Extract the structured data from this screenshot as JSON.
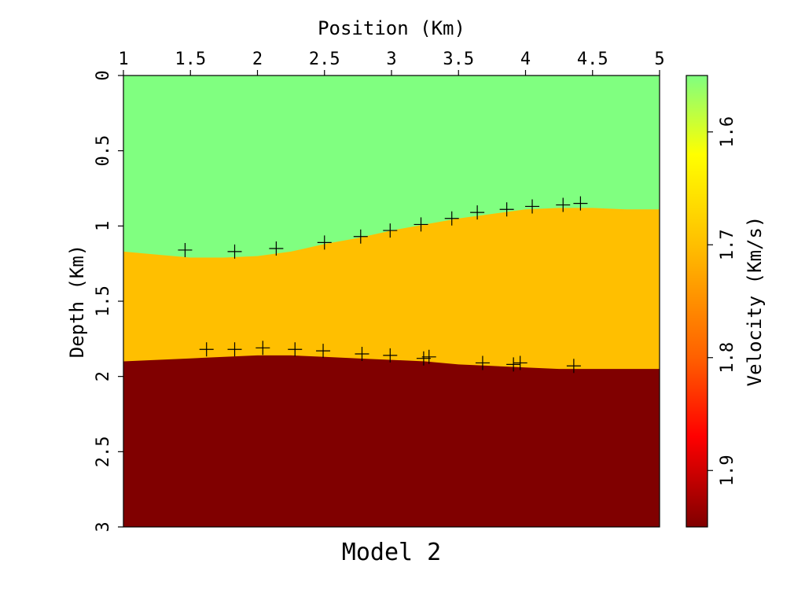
{
  "chart_data": {
    "type": "heatmap",
    "title": "",
    "caption": "Model 2",
    "xlabel": "Position (Km)",
    "ylabel": "Depth (Km)",
    "colorbar_label": "Velocity (Km/s)",
    "xlim": [
      1,
      5
    ],
    "ylim": [
      0,
      3
    ],
    "x_ticks": [
      1,
      1.5,
      2,
      2.5,
      3,
      3.5,
      4,
      4.5,
      5
    ],
    "x_tick_labels": [
      "1",
      "1.5",
      "2",
      "2.5",
      "3",
      "3.5",
      "4",
      "4.5",
      "5"
    ],
    "y_ticks": [
      0,
      0.5,
      1,
      1.5,
      2,
      2.5,
      3
    ],
    "y_tick_labels": [
      "0",
      "0.5",
      "1",
      "1.5",
      "2",
      "2.5",
      "3"
    ],
    "colorbar_range": [
      1.55,
      1.95
    ],
    "colorbar_ticks": [
      1.6,
      1.7,
      1.8,
      1.9
    ],
    "colorbar_tick_labels": [
      "1.6",
      "1.7",
      "1.8",
      "1.9"
    ],
    "colorbar_stops": [
      {
        "value": 1.55,
        "color": "#80ff80"
      },
      {
        "value": 1.62,
        "color": "#ffff00"
      },
      {
        "value": 1.7,
        "color": "#ffbf00"
      },
      {
        "value": 1.8,
        "color": "#ff6000"
      },
      {
        "value": 1.87,
        "color": "#ff0000"
      },
      {
        "value": 1.95,
        "color": "#800000"
      }
    ],
    "layers": [
      {
        "velocity": 1.58,
        "color": "#80ff80"
      },
      {
        "velocity": 1.7,
        "color": "#ffbf00"
      },
      {
        "velocity": 1.95,
        "color": "#800000"
      }
    ],
    "interfaces": [
      {
        "x": [
          1.0,
          1.25,
          1.5,
          1.75,
          2.0,
          2.25,
          2.5,
          2.75,
          3.0,
          3.25,
          3.5,
          3.75,
          4.0,
          4.25,
          4.5,
          4.75,
          5.0
        ],
        "depth": [
          1.17,
          1.19,
          1.21,
          1.21,
          1.2,
          1.17,
          1.12,
          1.08,
          1.03,
          0.99,
          0.95,
          0.92,
          0.89,
          0.88,
          0.88,
          0.89,
          0.89
        ]
      },
      {
        "x": [
          1.0,
          1.25,
          1.5,
          1.75,
          2.0,
          2.25,
          2.5,
          2.75,
          3.0,
          3.25,
          3.5,
          3.75,
          4.0,
          4.25,
          4.5,
          4.75,
          5.0
        ],
        "depth": [
          1.9,
          1.89,
          1.88,
          1.87,
          1.86,
          1.86,
          1.87,
          1.88,
          1.89,
          1.9,
          1.92,
          1.93,
          1.94,
          1.95,
          1.95,
          1.95,
          1.95
        ]
      }
    ],
    "picks": [
      {
        "x": 1.46,
        "depth": 1.16
      },
      {
        "x": 1.83,
        "depth": 1.17
      },
      {
        "x": 2.14,
        "depth": 1.15
      },
      {
        "x": 2.5,
        "depth": 1.11
      },
      {
        "x": 2.77,
        "depth": 1.07
      },
      {
        "x": 2.99,
        "depth": 1.03
      },
      {
        "x": 3.22,
        "depth": 0.99
      },
      {
        "x": 3.45,
        "depth": 0.95
      },
      {
        "x": 3.64,
        "depth": 0.91
      },
      {
        "x": 3.86,
        "depth": 0.89
      },
      {
        "x": 4.05,
        "depth": 0.87
      },
      {
        "x": 4.28,
        "depth": 0.86
      },
      {
        "x": 4.41,
        "depth": 0.85
      },
      {
        "x": 1.62,
        "depth": 1.82
      },
      {
        "x": 1.83,
        "depth": 1.82
      },
      {
        "x": 2.04,
        "depth": 1.81
      },
      {
        "x": 2.28,
        "depth": 1.82
      },
      {
        "x": 2.49,
        "depth": 1.83
      },
      {
        "x": 2.78,
        "depth": 1.85
      },
      {
        "x": 2.99,
        "depth": 1.86
      },
      {
        "x": 3.24,
        "depth": 1.88
      },
      {
        "x": 3.28,
        "depth": 1.87
      },
      {
        "x": 3.68,
        "depth": 1.91
      },
      {
        "x": 3.91,
        "depth": 1.92
      },
      {
        "x": 3.96,
        "depth": 1.91
      },
      {
        "x": 4.36,
        "depth": 1.93
      }
    ]
  }
}
